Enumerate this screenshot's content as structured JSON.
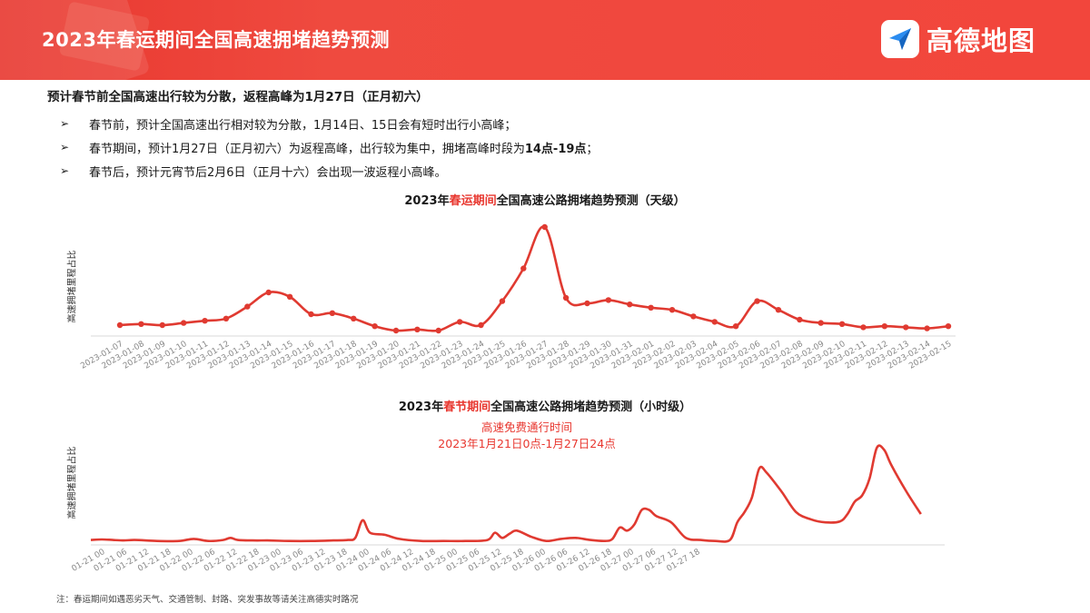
{
  "header": {
    "title": "2023年春运期间全国高速拥堵趋势预测",
    "logo_text": "高德地图",
    "logo_icon": "navigation-arrow-icon",
    "colors": {
      "banner": "#e8372f",
      "accent": "#e8372f",
      "line": "#e03a31"
    }
  },
  "summary": "预计春节前全国高速出行较为分散，返程高峰为1月27日（正月初六）",
  "bullets": [
    {
      "mark": "➢",
      "text": "春节前，预计全国高速出行相对较为分散，1月14日、15日会有短时出行小高峰；",
      "strong": ""
    },
    {
      "mark": "➢",
      "text": "春节期间，预计1月27日（正月初六）为返程高峰，出行较为集中，拥堵高峰时段为",
      "strong": "14点-19点",
      "tail": "；"
    },
    {
      "mark": "➢",
      "text": "春节后，预计元宵节后2月6日（正月十六）会出现一波返程小高峰。",
      "strong": ""
    }
  ],
  "note": "注：春运期间如遇恶劣天气、交通管制、封路、突发事故等请关注高德实时路况",
  "chart_data": [
    {
      "type": "line",
      "title_pre": "2023年",
      "title_hl": "春运期间",
      "title_post": "全国高速公路拥堵趋势预测（天级）",
      "ylabel": "高速拥堵里程占比",
      "grid": false,
      "x": [
        "2023-01-07",
        "2023-01-08",
        "2023-01-09",
        "2023-01-10",
        "2023-01-11",
        "2023-01-12",
        "2023-01-13",
        "2023-01-14",
        "2023-01-15",
        "2023-01-16",
        "2023-01-17",
        "2023-01-18",
        "2023-01-19",
        "2023-01-20",
        "2023-01-21",
        "2023-01-22",
        "2023-01-23",
        "2023-01-24",
        "2023-01-25",
        "2023-01-26",
        "2023-01-27",
        "2023-01-28",
        "2023-01-29",
        "2023-01-30",
        "2023-01-31",
        "2023-02-01",
        "2023-02-02",
        "2023-02-03",
        "2023-02-04",
        "2023-02-05",
        "2023-02-06",
        "2023-02-07",
        "2023-02-08",
        "2023-02-09",
        "2023-02-10",
        "2023-02-11",
        "2023-02-12",
        "2023-02-13",
        "2023-02-14",
        "2023-02-15"
      ],
      "values": [
        10,
        11,
        10,
        12,
        14,
        16,
        27,
        40,
        36,
        20,
        21,
        16,
        9,
        5,
        6,
        5,
        13,
        10,
        32,
        62,
        100,
        35,
        30,
        33,
        29,
        26,
        24,
        18,
        13,
        9,
        32,
        24,
        15,
        12,
        11,
        8,
        9,
        8,
        7,
        9
      ],
      "ylim": [
        0,
        105
      ]
    },
    {
      "type": "line",
      "title_pre": "2023年",
      "title_hl": "春节期间",
      "title_post": "全国高速公路拥堵趋势预测（小时级）",
      "ylabel": "高速拥堵里程占比",
      "annotation": [
        "高速免费通行时间",
        "2023年1月21日0点-1月27日24点"
      ],
      "grid": false,
      "x": [
        "01-21 00",
        "01-21 06",
        "01-21 12",
        "01-21 18",
        "01-22 00",
        "01-22 06",
        "01-22 12",
        "01-22 18",
        "01-23 00",
        "01-23 06",
        "01-23 12",
        "01-23 18",
        "01-24 00",
        "01-24 06",
        "01-24 12",
        "01-24 18",
        "01-25 00",
        "01-25 06",
        "01-25 12",
        "01-25 18",
        "01-26 00",
        "01-26 06",
        "01-26 12",
        "01-26 18",
        "01-27 00",
        "01-27 06",
        "01-27 12",
        "01-27 18"
      ],
      "points": [
        [
          0,
          3
        ],
        [
          3,
          3.5
        ],
        [
          6,
          3
        ],
        [
          9,
          2.5
        ],
        [
          12,
          3
        ],
        [
          18,
          2
        ],
        [
          24,
          2
        ],
        [
          28,
          4
        ],
        [
          32,
          2
        ],
        [
          36,
          3
        ],
        [
          38,
          5
        ],
        [
          40,
          3
        ],
        [
          44,
          2.5
        ],
        [
          48,
          2.5
        ],
        [
          54,
          2
        ],
        [
          60,
          2
        ],
        [
          66,
          2.5
        ],
        [
          70,
          3
        ],
        [
          72,
          5
        ],
        [
          74,
          22
        ],
        [
          76,
          10
        ],
        [
          80,
          8
        ],
        [
          84,
          4
        ],
        [
          90,
          2
        ],
        [
          96,
          2
        ],
        [
          102,
          2
        ],
        [
          108,
          3
        ],
        [
          110,
          10
        ],
        [
          112,
          5
        ],
        [
          114,
          9
        ],
        [
          116,
          12
        ],
        [
          120,
          6
        ],
        [
          124,
          2
        ],
        [
          128,
          4
        ],
        [
          132,
          5
        ],
        [
          136,
          3
        ],
        [
          140,
          2
        ],
        [
          142,
          4
        ],
        [
          144,
          15
        ],
        [
          146,
          12
        ],
        [
          148,
          18
        ],
        [
          150,
          32
        ],
        [
          152,
          32
        ],
        [
          154,
          26
        ],
        [
          158,
          20
        ],
        [
          162,
          5
        ],
        [
          166,
          3
        ],
        [
          170,
          2
        ],
        [
          174,
          3
        ],
        [
          176,
          20
        ],
        [
          178,
          30
        ],
        [
          180,
          44
        ],
        [
          182,
          72
        ],
        [
          184,
          68
        ],
        [
          188,
          50
        ],
        [
          192,
          30
        ],
        [
          196,
          23
        ],
        [
          200,
          20
        ],
        [
          204,
          21
        ],
        [
          206,
          28
        ],
        [
          208,
          40
        ],
        [
          210,
          46
        ],
        [
          212,
          62
        ],
        [
          214,
          92
        ],
        [
          216,
          90
        ],
        [
          218,
          75
        ],
        [
          222,
          50
        ],
        [
          226,
          28
        ]
      ],
      "xlim": [
        0,
        230
      ],
      "ylim": [
        0,
        100
      ]
    }
  ]
}
